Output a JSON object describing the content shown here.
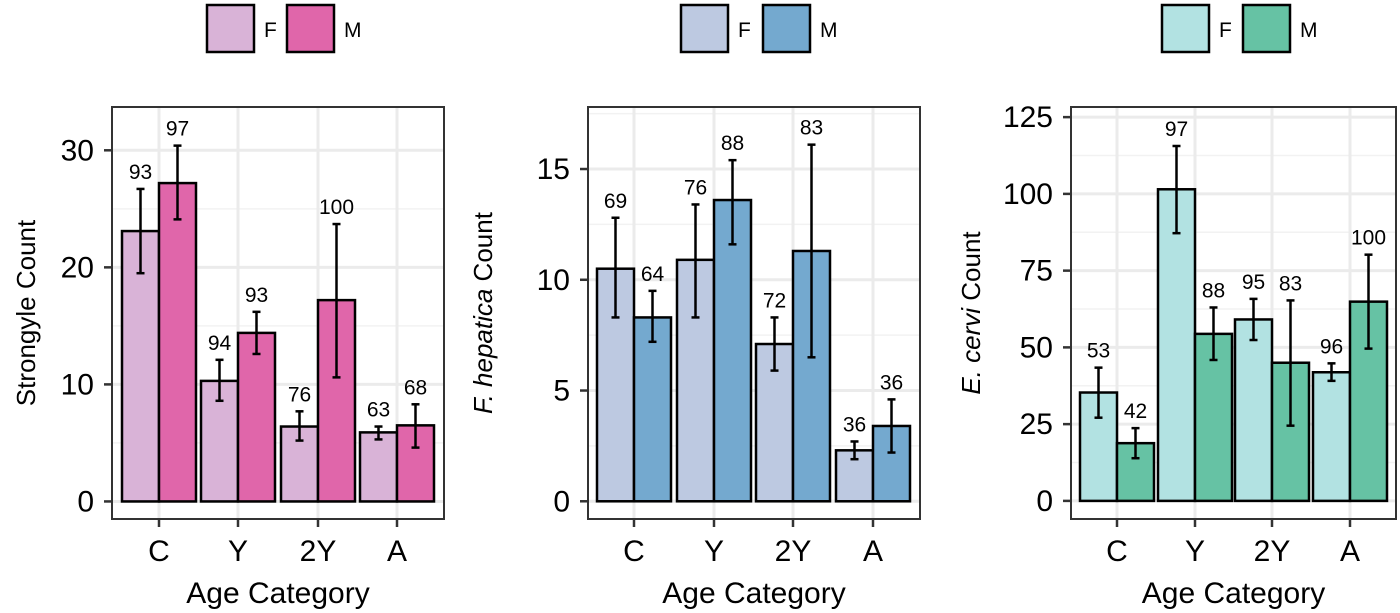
{
  "figure": {
    "shared_xlabel": "Age Category",
    "legend_labels": [
      "F",
      "M"
    ]
  },
  "chart_data": [
    {
      "type": "bar",
      "title": "",
      "xlabel": "Age Category",
      "ylabel": "Strongyle Count",
      "ylabel_italic_prefix": "",
      "ylabel_suffix": "Strongyle Count",
      "categories": [
        "C",
        "Y",
        "2Y",
        "A"
      ],
      "ylim": [
        -1.5,
        33.7
      ],
      "yticks": [
        0,
        10,
        20,
        30
      ],
      "minor_gridlines": [
        5,
        15,
        25
      ],
      "grid": true,
      "legend": {
        "position": "top",
        "entries": [
          "F",
          "M"
        ]
      },
      "colors": {
        "F": "#d9b3d7",
        "M": "#e066aa"
      },
      "series": [
        {
          "name": "F",
          "values": [
            23.1,
            10.3,
            6.4,
            5.9
          ],
          "err_low": [
            19.5,
            8.6,
            5.2,
            5.3
          ],
          "err_high": [
            26.7,
            12.1,
            7.7,
            6.4
          ],
          "labels": [
            "93",
            "94",
            "76",
            "63"
          ]
        },
        {
          "name": "M",
          "values": [
            27.2,
            14.4,
            17.2,
            6.5
          ],
          "err_low": [
            24.1,
            12.6,
            10.6,
            4.6
          ],
          "err_high": [
            30.4,
            16.2,
            23.7,
            8.3
          ],
          "labels": [
            "97",
            "93",
            "100",
            "68"
          ]
        }
      ]
    },
    {
      "type": "bar",
      "title": "",
      "xlabel": "Age Category",
      "ylabel": "F. hepatica Count",
      "ylabel_italic_prefix": "F. hepatica",
      "ylabel_suffix": " Count",
      "categories": [
        "C",
        "Y",
        "2Y",
        "A"
      ],
      "ylim": [
        -0.8,
        17.8
      ],
      "yticks": [
        0,
        5,
        10,
        15
      ],
      "minor_gridlines": [
        2.5,
        7.5,
        12.5,
        17.5
      ],
      "grid": true,
      "legend": {
        "position": "top",
        "entries": [
          "F",
          "M"
        ]
      },
      "colors": {
        "F": "#bdc9e1",
        "M": "#74a9cf"
      },
      "series": [
        {
          "name": "F",
          "values": [
            10.5,
            10.9,
            7.1,
            2.3
          ],
          "err_low": [
            8.3,
            8.3,
            5.9,
            1.9
          ],
          "err_high": [
            12.8,
            13.4,
            8.3,
            2.7
          ],
          "labels": [
            "69",
            "76",
            "72",
            "36"
          ]
        },
        {
          "name": "M",
          "values": [
            8.3,
            13.6,
            11.3,
            3.4
          ],
          "err_low": [
            7.2,
            11.6,
            6.5,
            2.2
          ],
          "err_high": [
            9.5,
            15.4,
            16.1,
            4.6
          ],
          "labels": [
            "64",
            "88",
            "83",
            "36"
          ]
        }
      ]
    },
    {
      "type": "bar",
      "title": "",
      "xlabel": "Age Category",
      "ylabel": "E. cervi Count",
      "ylabel_italic_prefix": "E. cervi",
      "ylabel_suffix": " Count",
      "categories": [
        "C",
        "Y",
        "2Y",
        "A"
      ],
      "ylim": [
        -5.9,
        128.3
      ],
      "yticks": [
        0,
        25,
        50,
        75,
        100,
        125
      ],
      "minor_gridlines": [
        12.5,
        37.5,
        62.5,
        87.5,
        112.5
      ],
      "grid": true,
      "legend": {
        "position": "top",
        "entries": [
          "F",
          "M"
        ]
      },
      "colors": {
        "F": "#b2e2e2",
        "M": "#66c2a4"
      },
      "series": [
        {
          "name": "F",
          "values": [
            35.3,
            101.5,
            59.1,
            41.9
          ],
          "err_low": [
            27.1,
            87.2,
            52.4,
            39.1
          ],
          "err_high": [
            43.4,
            115.6,
            65.8,
            44.8
          ],
          "labels": [
            "53",
            "97",
            "95",
            "96"
          ]
        },
        {
          "name": "M",
          "values": [
            18.8,
            54.4,
            45.0,
            64.9
          ],
          "err_low": [
            13.9,
            45.9,
            24.5,
            49.6
          ],
          "err_high": [
            23.7,
            63.0,
            65.3,
            80.2
          ],
          "labels": [
            "42",
            "88",
            "83",
            "100"
          ]
        }
      ]
    }
  ]
}
